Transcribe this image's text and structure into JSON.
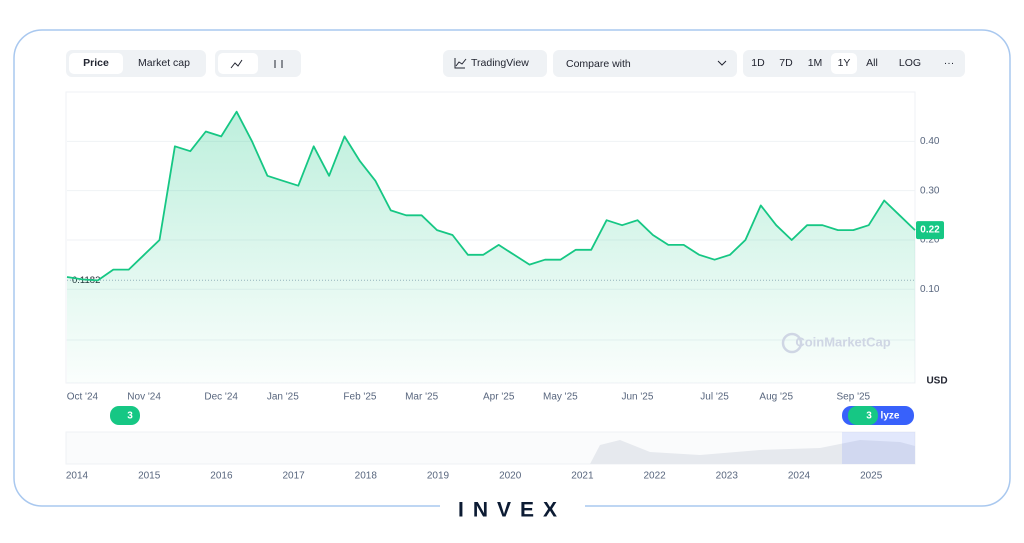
{
  "toolbar": {
    "price": "Price",
    "market_cap": "Market cap",
    "trading_view": "TradingView",
    "compare": "Compare with",
    "ranges": [
      "1D",
      "7D",
      "1M",
      "1Y",
      "All",
      "LOG"
    ],
    "more": "···"
  },
  "chart_data": {
    "type": "line",
    "series": [
      {
        "name": "Price",
        "color": "#16c784",
        "values": [
          0.125,
          0.12,
          0.118,
          0.14,
          0.14,
          0.17,
          0.2,
          0.39,
          0.38,
          0.42,
          0.41,
          0.46,
          0.4,
          0.33,
          0.32,
          0.31,
          0.39,
          0.33,
          0.41,
          0.36,
          0.32,
          0.26,
          0.25,
          0.25,
          0.22,
          0.21,
          0.17,
          0.17,
          0.19,
          0.17,
          0.15,
          0.16,
          0.16,
          0.18,
          0.18,
          0.24,
          0.23,
          0.24,
          0.21,
          0.19,
          0.19,
          0.17,
          0.16,
          0.17,
          0.2,
          0.27,
          0.23,
          0.2,
          0.23,
          0.23,
          0.22,
          0.22,
          0.23,
          0.28,
          0.25,
          0.22
        ]
      }
    ],
    "xlim": [
      0,
      55
    ],
    "xticks": [
      {
        "value": 1,
        "label": "Oct '24"
      },
      {
        "value": 5,
        "label": "Nov '24"
      },
      {
        "value": 10,
        "label": "Dec '24"
      },
      {
        "value": 14,
        "label": "Jan '25"
      },
      {
        "value": 19,
        "label": "Feb '25"
      },
      {
        "value": 23,
        "label": "Mar '25"
      },
      {
        "value": 28,
        "label": "Apr '25"
      },
      {
        "value": 32,
        "label": "May '25"
      },
      {
        "value": 37,
        "label": "Jun '25"
      },
      {
        "value": 42,
        "label": "Jul '25"
      },
      {
        "value": 46,
        "label": "Aug '25"
      },
      {
        "value": 51,
        "label": "Sep '25"
      }
    ],
    "ylim": [
      -0.09,
      0.5
    ],
    "yticks": [
      {
        "value": 0.1,
        "label": "0.10"
      },
      {
        "value": 0.2,
        "label": "0.20"
      },
      {
        "value": 0.3,
        "label": "0.30"
      },
      {
        "value": 0.4,
        "label": "0.40"
      }
    ],
    "start_price": 0.1182,
    "current_price": 0.22,
    "currency": "USD",
    "watermark": "CoinMarketCap",
    "grid": true
  },
  "badges": [
    "3",
    "3",
    "lyze"
  ],
  "navigator": {
    "years": [
      "2014",
      "2015",
      "2016",
      "2017",
      "2018",
      "2019",
      "2020",
      "2021",
      "2022",
      "2023",
      "2024",
      "2025"
    ]
  },
  "branding": "INVEX"
}
